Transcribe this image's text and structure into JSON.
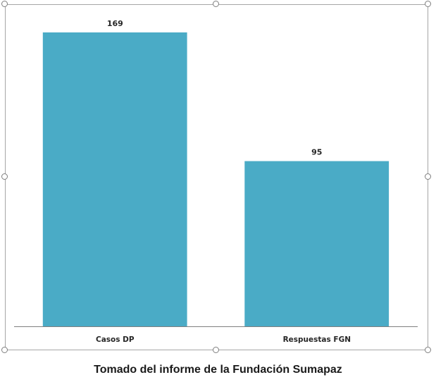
{
  "chart_data": {
    "type": "bar",
    "categories": [
      "Casos DP",
      "Respuestas FGN"
    ],
    "values": [
      169,
      95
    ],
    "data_labels": [
      "169",
      "95"
    ],
    "title": "",
    "xlabel": "",
    "ylabel": "",
    "ylim": [
      0,
      180
    ],
    "grid": false,
    "legend": "none",
    "bar_color": "#4aabc6",
    "axis_color": "#7f7f7f"
  },
  "caption": "Tomado del informe de la Fundación Sumapaz"
}
